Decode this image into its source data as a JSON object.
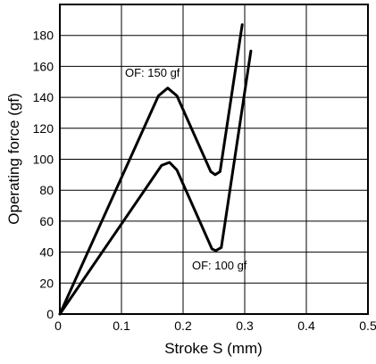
{
  "chart_data": {
    "type": "line",
    "xlabel": "Stroke S (mm)",
    "ylabel": "Operating force (gf)",
    "xlim": [
      0,
      0.5
    ],
    "ylim": [
      0,
      200
    ],
    "xticks": [
      "0",
      "0.1",
      "0.2",
      "0.3",
      "0.4",
      "0.5"
    ],
    "yticks": [
      "0",
      "20",
      "40",
      "60",
      "80",
      "100",
      "120",
      "140",
      "160",
      "180"
    ],
    "grid": true,
    "series": [
      {
        "name": "OF: 150 gf",
        "points": [
          [
            0,
            0
          ],
          [
            0.16,
            141
          ],
          [
            0.175,
            146
          ],
          [
            0.19,
            141
          ],
          [
            0.245,
            92
          ],
          [
            0.252,
            90
          ],
          [
            0.26,
            92
          ],
          [
            0.296,
            187
          ]
        ]
      },
      {
        "name": "OF: 100 gf",
        "points": [
          [
            0,
            0
          ],
          [
            0.165,
            96
          ],
          [
            0.178,
            98
          ],
          [
            0.19,
            93
          ],
          [
            0.247,
            42
          ],
          [
            0.253,
            41
          ],
          [
            0.262,
            43
          ],
          [
            0.31,
            170
          ]
        ]
      }
    ],
    "annotations": [
      "OF: 150 gf",
      "OF: 100 gf"
    ],
    "line_color": "#000000"
  }
}
